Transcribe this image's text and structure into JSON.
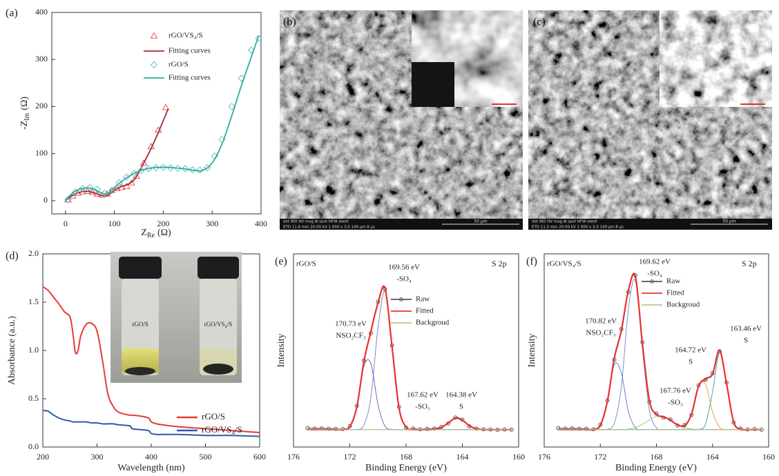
{
  "chart_data": [
    {
      "type": "scatter",
      "panel": "(a)",
      "xlabel": [
        "Z",
        "Re",
        "(Ω)"
      ],
      "ylabel": [
        "-Z",
        "Im",
        "(Ω)"
      ],
      "xlim": [
        -28,
        400
      ],
      "ylim": [
        -28,
        400
      ],
      "xticks": [
        0,
        100,
        200,
        300,
        400
      ],
      "yticks": [
        0,
        100,
        200,
        300,
        400
      ],
      "series": [
        {
          "name": "rGO/VS₄/S",
          "color": "#e0554f",
          "marker": "triangle",
          "x": [
            5,
            15,
            25,
            35,
            45,
            55,
            65,
            75,
            85,
            95,
            105,
            115,
            125,
            135,
            145,
            160,
            175,
            190,
            205
          ],
          "values": [
            2,
            10,
            16,
            19,
            20,
            18,
            14,
            12,
            14,
            22,
            26,
            28,
            30,
            38,
            52,
            80,
            115,
            150,
            198
          ]
        },
        {
          "name": "Fitting curves",
          "color": "#a0283a",
          "x": [
            0,
            10,
            20,
            30,
            40,
            50,
            60,
            70,
            80,
            90,
            100,
            110,
            120,
            130,
            140,
            150,
            160,
            170,
            180,
            190,
            200,
            210
          ],
          "values": [
            0,
            8,
            14,
            18,
            20,
            19,
            16,
            12,
            10,
            14,
            22,
            28,
            32,
            36,
            44,
            60,
            80,
            100,
            122,
            145,
            170,
            195
          ]
        },
        {
          "name": "rGO/S",
          "color": "#63c1c0",
          "marker": "diamond",
          "x": [
            5,
            20,
            35,
            50,
            65,
            80,
            95,
            110,
            125,
            140,
            155,
            170,
            185,
            200,
            215,
            230,
            245,
            260,
            275,
            290,
            305,
            320,
            340,
            360,
            380,
            395
          ],
          "values": [
            2,
            18,
            26,
            28,
            24,
            16,
            22,
            38,
            50,
            58,
            64,
            68,
            70,
            71,
            70,
            69,
            68,
            66,
            65,
            70,
            95,
            130,
            200,
            260,
            320,
            345
          ]
        },
        {
          "name": "Fitting curves",
          "color": "#2fa9a3",
          "x": [
            0,
            10,
            20,
            30,
            40,
            50,
            60,
            70,
            80,
            90,
            100,
            120,
            140,
            160,
            180,
            200,
            220,
            240,
            260,
            280,
            300,
            320,
            340,
            360,
            380,
            395
          ],
          "values": [
            0,
            12,
            20,
            25,
            27,
            27,
            24,
            18,
            14,
            18,
            28,
            45,
            58,
            66,
            70,
            71,
            70,
            68,
            65,
            64,
            80,
            120,
            180,
            245,
            305,
            350
          ]
        }
      ]
    },
    {
      "type": "line",
      "panel": "(d)",
      "xlabel": "Wavelength (nm)",
      "ylabel": "Absorbance (a.u.)",
      "inset_labels": [
        "rGO/S",
        "rGO/VS₄/S"
      ],
      "xlim": [
        200,
        600
      ],
      "ylim": [
        0,
        2
      ],
      "xticks": [
        200,
        300,
        400,
        500,
        600
      ],
      "yticks": [
        {
          "value": 0,
          "label": "0.0"
        },
        0.5,
        {
          "value": 1,
          "label": "1.0"
        },
        1.5,
        {
          "value": 2,
          "label": "2.0"
        }
      ],
      "x": [
        200,
        210,
        220,
        230,
        240,
        250,
        255,
        260,
        265,
        270,
        280,
        290,
        300,
        310,
        320,
        330,
        340,
        360,
        365,
        380,
        395,
        400,
        410,
        420,
        450,
        500,
        550,
        600
      ],
      "series": [
        {
          "name": "rGO/S",
          "color": "#e53935",
          "values": [
            1.66,
            1.62,
            1.55,
            1.48,
            1.4,
            1.35,
            1.2,
            0.98,
            1.0,
            1.15,
            1.27,
            1.28,
            1.2,
            0.9,
            0.55,
            0.42,
            0.36,
            0.33,
            0.33,
            0.32,
            0.3,
            0.26,
            0.24,
            0.23,
            0.21,
            0.19,
            0.17,
            0.15
          ]
        },
        {
          "name": "rGO/VS₄/S",
          "color": "#2d5aa8",
          "values": [
            0.38,
            0.37,
            0.33,
            0.3,
            0.28,
            0.27,
            0.26,
            0.26,
            0.26,
            0.26,
            0.26,
            0.25,
            0.25,
            0.24,
            0.24,
            0.24,
            0.23,
            0.22,
            0.19,
            0.18,
            0.17,
            0.14,
            0.13,
            0.13,
            0.13,
            0.12,
            0.12,
            0.11
          ]
        }
      ]
    },
    {
      "type": "line",
      "panel": "(e)",
      "sample": "rGO/S",
      "region": "S 2p",
      "xlabel": "Binding Energy (eV)",
      "ylabel": "Intensity",
      "xlim": [
        176,
        160
      ],
      "ylim": [
        0,
        100
      ],
      "xticks": [
        176,
        172,
        168,
        164,
        160
      ],
      "x": [
        175,
        174.5,
        174,
        173.5,
        173,
        172.5,
        172,
        171.5,
        171,
        170.5,
        170,
        169.5,
        169,
        168.5,
        168,
        167.5,
        167,
        166.5,
        166,
        165.5,
        165,
        164.5,
        164,
        163.5,
        163,
        162.5,
        162,
        161.5,
        161,
        160.5
      ],
      "series": [
        {
          "name": "Raw",
          "color": "#555555",
          "marker": "circle",
          "line": true,
          "values": [
            9.8,
            9.6,
            9.7,
            9.5,
            9.4,
            9.3,
            10.8,
            21.3,
            44.8,
            58.9,
            75.2,
            81.8,
            52.6,
            20.8,
            10.1,
            9.6,
            9.2,
            9.4,
            9.6,
            10.4,
            12.2,
            15.3,
            14.2,
            10.7,
            9.6,
            9.2,
            9.1,
            8.9,
            9.1,
            9.0
          ]
        },
        {
          "name": "Fitted",
          "color": "#e8302c",
          "values": [
            9,
            9,
            9,
            9,
            9,
            9.1,
            10.5,
            20.7,
            44.1,
            59.9,
            74.4,
            82.4,
            52,
            20.2,
            10.3,
            9.1,
            9,
            9,
            9.2,
            10.1,
            12.5,
            14.9,
            13.9,
            11,
            9.4,
            9,
            9,
            9,
            9,
            9
          ]
        },
        {
          "name": "Backgroud",
          "color": "#b9c48a",
          "values": [
            9,
            9,
            9,
            9,
            9,
            9,
            9,
            9,
            9,
            9,
            9,
            9,
            9,
            9,
            9,
            9,
            9,
            9,
            9,
            9,
            9,
            9,
            9,
            9,
            9,
            9,
            9,
            9,
            9,
            9
          ]
        },
        {
          "color": "#7d86c9",
          "values": [
            9,
            9,
            9,
            9,
            9,
            9,
            9,
            9.1,
            11.3,
            25.7,
            61.3,
            80.6,
            51.9,
            20.2,
            10.3,
            9.1,
            9,
            9,
            9,
            9,
            9,
            9,
            9,
            9,
            9,
            9,
            9,
            9,
            9,
            9
          ]
        },
        {
          "color": "#5b6db5",
          "values": [
            9,
            9,
            9,
            9,
            9,
            9.1,
            10.5,
            20.6,
            41.8,
            43.2,
            22.1,
            10.8,
            9.1,
            9,
            9,
            9,
            9,
            9,
            9,
            9,
            9,
            9,
            9,
            9,
            9,
            9,
            9,
            9,
            9,
            9
          ]
        },
        {
          "color": "#7e8ccc",
          "values": [
            9,
            9,
            9,
            9,
            9,
            9,
            9,
            9,
            9,
            9,
            9,
            9,
            9,
            9,
            9,
            9,
            9,
            9,
            9.2,
            10.1,
            12.5,
            14.9,
            13.9,
            11,
            9.4,
            9,
            9,
            9,
            9,
            9
          ]
        }
      ],
      "annotations": [
        {
          "text": "169.56 eV",
          "sub": "-SO₄"
        },
        {
          "text": "170.73 eV",
          "sub": "NSO₂CF₃"
        },
        {
          "text": "167.62 eV",
          "sub": "-SO₃"
        },
        {
          "text": "164.38 eV",
          "sub": "S"
        }
      ]
    },
    {
      "type": "line",
      "panel": "(f)",
      "sample": "rGO/VS₄/S",
      "region": "S 2p",
      "xlabel": "Binding Energy (eV)",
      "ylabel": "Intensity",
      "xlim": [
        176,
        160
      ],
      "ylim": [
        0,
        100
      ],
      "xticks": [
        176,
        172,
        168,
        164,
        160
      ],
      "x": [
        175,
        174.5,
        174,
        173.5,
        173,
        172.5,
        172,
        171.5,
        171,
        170.5,
        170,
        169.5,
        169,
        168.5,
        168,
        167.5,
        167,
        166.5,
        166,
        165.5,
        165,
        164.5,
        164,
        163.5,
        163,
        162.5,
        162,
        161.5,
        161,
        160.5
      ],
      "series": [
        {
          "name": "Raw",
          "color": "#555555",
          "marker": "circle",
          "line": true,
          "values": [
            9.8,
            9.6,
            9.7,
            9.5,
            9.5,
            9.2,
            11.6,
            24.1,
            45.2,
            61.1,
            80.2,
            88.9,
            54.3,
            23.4,
            17.3,
            15.2,
            14.3,
            11.2,
            11.4,
            16.6,
            31.9,
            34.8,
            38.2,
            49.6,
            33.4,
            12.7,
            9.6,
            9.1,
            9.3,
            9.0
          ]
        },
        {
          "name": "Fitted",
          "color": "#e8302c",
          "values": [
            9,
            9,
            9,
            9,
            9,
            9.1,
            11.2,
            23.5,
            46.1,
            60.3,
            81,
            88.3,
            53.6,
            24,
            16.8,
            15.7,
            13.9,
            11.6,
            11,
            17,
            31.4,
            35.4,
            37.7,
            50.1,
            32.8,
            13.1,
            9.2,
            9,
            9,
            9
          ]
        },
        {
          "name": "Backgroud",
          "color": "#b9c48a",
          "values": [
            9,
            9,
            9,
            9,
            9,
            9,
            9,
            9,
            9,
            9,
            9,
            9,
            9,
            9,
            9,
            9,
            9,
            9,
            9,
            9,
            9,
            9,
            9,
            9,
            9,
            9,
            9,
            9,
            9,
            9
          ]
        },
        {
          "color": "#7b8fd0",
          "values": [
            9,
            9,
            9,
            9,
            9,
            9,
            9,
            9.2,
            12.4,
            31,
            71.3,
            86.1,
            50.9,
            19,
            10,
            9,
            9,
            9,
            9,
            9,
            9,
            9,
            9,
            9,
            9,
            9,
            9,
            9,
            9,
            9
          ]
        },
        {
          "color": "#6d7fc4",
          "values": [
            9,
            9,
            9,
            9,
            9,
            9.1,
            11.2,
            23.3,
            42.7,
            38.3,
            18.4,
            10.1,
            9,
            9,
            9,
            9,
            9,
            9,
            9,
            9,
            9,
            9,
            9,
            9,
            9,
            9,
            9,
            9,
            9,
            9
          ]
        },
        {
          "color": "#8fd08f",
          "values": [
            9,
            9,
            9,
            9,
            9,
            9,
            9,
            9,
            9,
            9,
            9.3,
            10.1,
            11.7,
            14,
            15.8,
            15.7,
            13.9,
            11.6,
            10,
            9.3,
            9.1,
            9,
            9,
            9,
            9,
            9,
            9,
            9,
            9,
            9
          ]
        },
        {
          "color": "#e8a848",
          "values": [
            9,
            9,
            9,
            9,
            9,
            9,
            9,
            9,
            9,
            9,
            9,
            9,
            9,
            9,
            9,
            9,
            9,
            9,
            10,
            16.7,
            31.2,
            32.6,
            18.2,
            10.3,
            9.1,
            9,
            9,
            9,
            9,
            9
          ]
        },
        {
          "color": "#3fa6b8",
          "values": [
            9,
            9,
            9,
            9,
            9,
            9,
            9,
            9,
            9,
            9,
            9,
            9,
            9,
            9,
            9,
            9,
            9,
            9,
            9,
            9,
            9.1,
            11.8,
            28.5,
            48.8,
            32.7,
            13.1,
            9.2,
            9,
            9,
            9
          ]
        }
      ],
      "annotations": [
        {
          "text": "169.62 eV",
          "sub": "-SO₄"
        },
        {
          "text": "170.82 eV",
          "sub": "NSO₂CF₃"
        },
        {
          "text": "167.76 eV",
          "sub": "-SO₃"
        },
        {
          "text": "164.72 eV",
          "sub": "S"
        },
        {
          "text": "163.46 eV",
          "sub": "S"
        }
      ]
    }
  ],
  "images": [
    {
      "label": "(b)",
      "scale_bar": "50 μm",
      "info": [
        "det   WD   HV   mag ⊞  spot  HFW  dwell",
        "ETD 11.6 mm 20.00 kV 1 000 x 3.0 149 μm 8 μs"
      ]
    },
    {
      "label": "(c)",
      "scale_bar": "50 μm",
      "info": [
        "det   WD   HV   mag ⊞  spot  HFW  dwell",
        "ETD 11.5 mm 20.00 kV 1 000 x 3.0 149 μm 8 μs"
      ]
    }
  ]
}
